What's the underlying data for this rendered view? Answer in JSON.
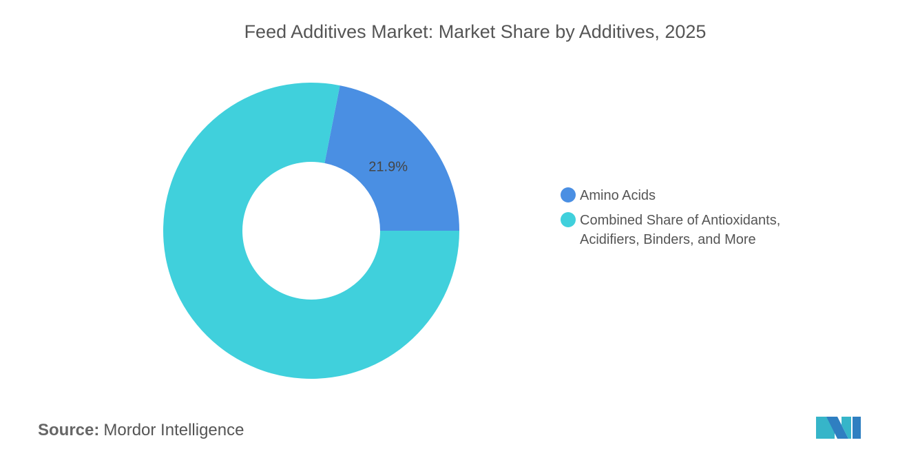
{
  "chart_data": {
    "type": "pie",
    "title": "Feed Additives Market: Market Share by Additives, 2025",
    "categories": [
      "Amino Acids",
      "Combined Share of Antioxidants, Acidifiers, Binders, and More"
    ],
    "values": [
      21.9,
      78.1
    ],
    "value_labels": [
      "21.9%",
      null
    ],
    "colors": [
      "#4a8fe3",
      "#40d0dc"
    ],
    "donut": true,
    "legend": "right"
  },
  "source": {
    "label": "Source:",
    "text": "Mordor Intelligence"
  }
}
